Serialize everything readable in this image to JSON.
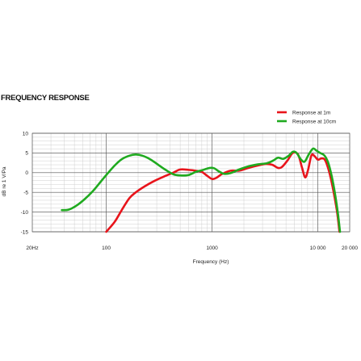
{
  "chart_data": {
    "type": "line",
    "title": "FREQUENCY RESPONSE",
    "xlabel": "Frequency (Hz)",
    "ylabel": "dB re 1 V/Pa",
    "x_scale": "log",
    "xlim": [
      20,
      20000
    ],
    "ylim": [
      -15,
      10
    ],
    "y_ticks": [
      "10",
      "5",
      "0",
      "-5",
      "-10",
      "-15"
    ],
    "y_tick_values": [
      10,
      5,
      0,
      -5,
      -10,
      -15
    ],
    "x_ticks": [
      "20Hz",
      "100",
      "1000",
      "10 000",
      "20 000"
    ],
    "x_tick_values": [
      20,
      100,
      1000,
      10000,
      20000
    ],
    "grid": true,
    "legend_position": "top-right",
    "series": [
      {
        "name": "Response at 1m",
        "color": "#e8141b",
        "points": [
          [
            100,
            -15
          ],
          [
            120,
            -12.5
          ],
          [
            140,
            -9.5
          ],
          [
            165,
            -6.5
          ],
          [
            190,
            -5
          ],
          [
            230,
            -3.5
          ],
          [
            280,
            -2.2
          ],
          [
            350,
            -1
          ],
          [
            430,
            0
          ],
          [
            500,
            0.8
          ],
          [
            600,
            0.7
          ],
          [
            700,
            0.5
          ],
          [
            800,
            0.2
          ],
          [
            900,
            -0.8
          ],
          [
            1000,
            -1.6
          ],
          [
            1100,
            -1.3
          ],
          [
            1250,
            -0.3
          ],
          [
            1500,
            0.5
          ],
          [
            1800,
            0.5
          ],
          [
            2200,
            1.2
          ],
          [
            2700,
            1.8
          ],
          [
            3200,
            2.2
          ],
          [
            3700,
            2.0
          ],
          [
            4200,
            1.2
          ],
          [
            4600,
            1.5
          ],
          [
            5200,
            3.2
          ],
          [
            5800,
            5.0
          ],
          [
            6500,
            4.6
          ],
          [
            7100,
            1.2
          ],
          [
            7600,
            -1.2
          ],
          [
            8100,
            0.8
          ],
          [
            8700,
            4.4
          ],
          [
            9300,
            4.2
          ],
          [
            10000,
            3.3
          ],
          [
            10800,
            3.6
          ],
          [
            11700,
            3.2
          ],
          [
            12800,
            0.2
          ],
          [
            14000,
            -4.5
          ],
          [
            15200,
            -10
          ],
          [
            16000,
            -15
          ]
        ]
      },
      {
        "name": "Response at 10cm",
        "color": "#1faa1f",
        "points": [
          [
            38,
            -9.5
          ],
          [
            44,
            -9.4
          ],
          [
            52,
            -8.4
          ],
          [
            62,
            -6.8
          ],
          [
            74,
            -4.8
          ],
          [
            88,
            -2.4
          ],
          [
            100,
            -0.6
          ],
          [
            120,
            1.8
          ],
          [
            140,
            3.4
          ],
          [
            165,
            4.3
          ],
          [
            190,
            4.6
          ],
          [
            220,
            4.3
          ],
          [
            260,
            3.4
          ],
          [
            310,
            2.0
          ],
          [
            360,
            0.8
          ],
          [
            430,
            -0.4
          ],
          [
            500,
            -0.7
          ],
          [
            600,
            -0.6
          ],
          [
            700,
            0.2
          ],
          [
            800,
            0.6
          ],
          [
            950,
            1.2
          ],
          [
            1050,
            1.1
          ],
          [
            1150,
            0.4
          ],
          [
            1300,
            -0.3
          ],
          [
            1500,
            -0.1
          ],
          [
            1800,
            0.8
          ],
          [
            2200,
            1.6
          ],
          [
            2700,
            2.1
          ],
          [
            3300,
            2.4
          ],
          [
            3800,
            3.1
          ],
          [
            4200,
            3.8
          ],
          [
            4700,
            3.5
          ],
          [
            5300,
            4.3
          ],
          [
            5800,
            5.3
          ],
          [
            6300,
            5.0
          ],
          [
            6900,
            3.4
          ],
          [
            7500,
            2.8
          ],
          [
            8200,
            4.6
          ],
          [
            9000,
            6.1
          ],
          [
            9700,
            5.6
          ],
          [
            10500,
            5.0
          ],
          [
            11500,
            4.4
          ],
          [
            12500,
            2.6
          ],
          [
            13500,
            -0.8
          ],
          [
            14500,
            -5.2
          ],
          [
            15500,
            -10.5
          ],
          [
            16200,
            -15
          ]
        ]
      }
    ]
  }
}
